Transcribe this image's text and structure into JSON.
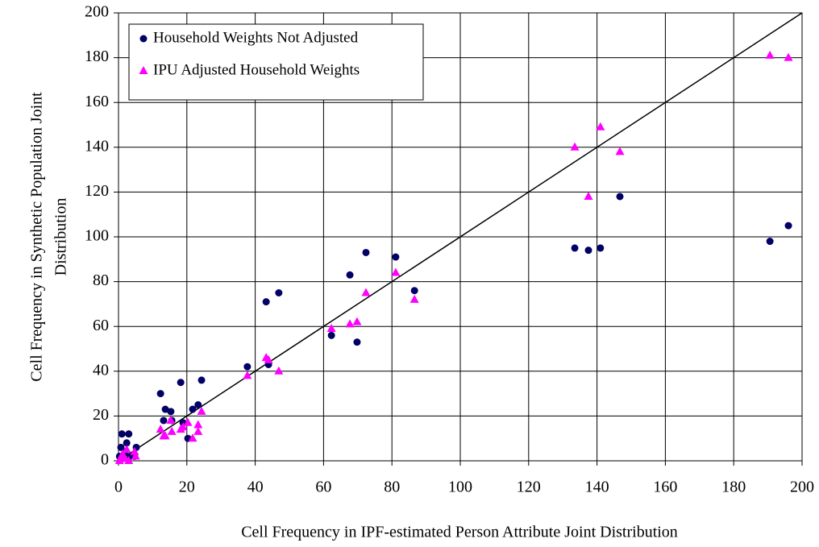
{
  "chart_data": {
    "type": "scatter",
    "xlabel": "Cell Frequency in IPF-estimated Person Attribute Joint Distribution",
    "ylabel": [
      "Cell Frequency in Synthetic Population Joint",
      "Distribution"
    ],
    "xlim": [
      0,
      200
    ],
    "ylim": [
      0,
      200
    ],
    "xticks": [
      0,
      20,
      40,
      60,
      80,
      100,
      120,
      140,
      160,
      180,
      200
    ],
    "yticks": [
      0,
      20,
      40,
      60,
      80,
      100,
      120,
      140,
      160,
      180,
      200
    ],
    "grid": true,
    "legend": "upper left",
    "reference_line": {
      "x": [
        0,
        200
      ],
      "y": [
        0,
        200
      ],
      "color": "#000000"
    },
    "series": [
      {
        "name": "Household Weights Not Adjusted",
        "color": "#000066",
        "marker": "circle",
        "x": [
          190.6,
          196,
          146.7,
          133.5,
          137.5,
          141,
          86.6,
          81.1,
          72.4,
          67.7,
          69.8,
          62.3,
          46.9,
          43.2,
          43.9,
          37.7,
          24.3,
          23.3,
          21.7,
          18.2,
          12.3,
          13.7,
          13.2,
          15.3,
          15.6,
          18.9,
          20.3,
          5.2,
          0.7,
          1,
          3,
          2.4,
          1.9,
          0.3,
          1.2,
          3.5,
          4.7
        ],
        "values": [
          98,
          105,
          118,
          95,
          94,
          95,
          76,
          91,
          93,
          83,
          53,
          56,
          75,
          71,
          43,
          42,
          36,
          25,
          23,
          35,
          30,
          23,
          18,
          22,
          18,
          17,
          10,
          6,
          6,
          12,
          12,
          8,
          4,
          2,
          1,
          2,
          2
        ]
      },
      {
        "name": "IPU Adjusted Household Weights",
        "color": "#ff00ff",
        "marker": "triangle",
        "x": [
          190.6,
          196,
          141,
          133.5,
          146.7,
          137.5,
          81.1,
          86.6,
          72.4,
          67.7,
          69.8,
          62.3,
          43.2,
          43.9,
          46.9,
          37.7,
          24.3,
          23.3,
          23.3,
          21.7,
          20.3,
          18.2,
          18.9,
          12.3,
          13.2,
          13.7,
          15.6,
          15.3,
          5,
          4.7,
          2.4,
          1.2,
          0.7,
          1.9,
          3,
          0.3
        ],
        "values": [
          181,
          180,
          149,
          140,
          138,
          118,
          84,
          72,
          75,
          61,
          62,
          59,
          46,
          45,
          40,
          38,
          22,
          16,
          13,
          10,
          17,
          14,
          15,
          14,
          11,
          11,
          13,
          18,
          2,
          4,
          5,
          3,
          1.5,
          1,
          0,
          0
        ]
      }
    ]
  }
}
